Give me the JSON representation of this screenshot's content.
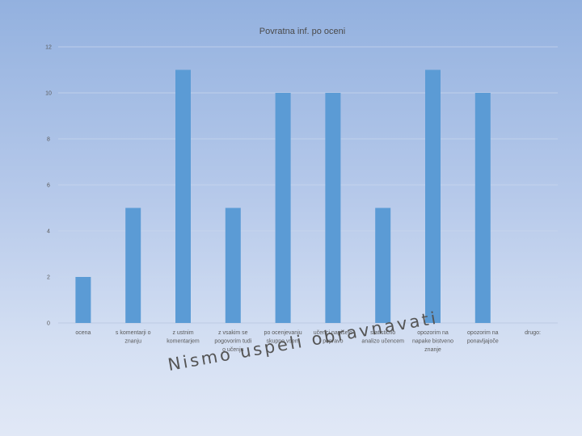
{
  "chart_data": {
    "type": "bar",
    "title": "Povratna inf. po oceni",
    "xlabel": "",
    "ylabel": "",
    "ylim": [
      0,
      12
    ],
    "yticks": [
      0,
      2,
      4,
      6,
      8,
      10,
      12
    ],
    "grid": true,
    "legend": "none",
    "bar_color": "#5b9bd5",
    "categories": [
      [
        "ocena"
      ],
      [
        "s komentarji o",
        "znanju"
      ],
      [
        "z ustnim",
        "komentarjem"
      ],
      [
        "z vsakim se",
        "pogovorim tudi",
        "o učenju"
      ],
      [
        "po ocenjevanju",
        "skupno vsem"
      ],
      [
        "učenci napišejo",
        "popravo"
      ],
      [
        "statistično",
        "analizo učencem"
      ],
      [
        "opozorim na",
        "napake bistveno",
        "znanje"
      ],
      [
        "opozorim na",
        "ponavljajoče"
      ],
      [
        "drugo:"
      ]
    ],
    "values": [
      2,
      5,
      11,
      5,
      10,
      10,
      5,
      11,
      10,
      0
    ]
  },
  "footnote": "Nismo uspeli obravnavati"
}
